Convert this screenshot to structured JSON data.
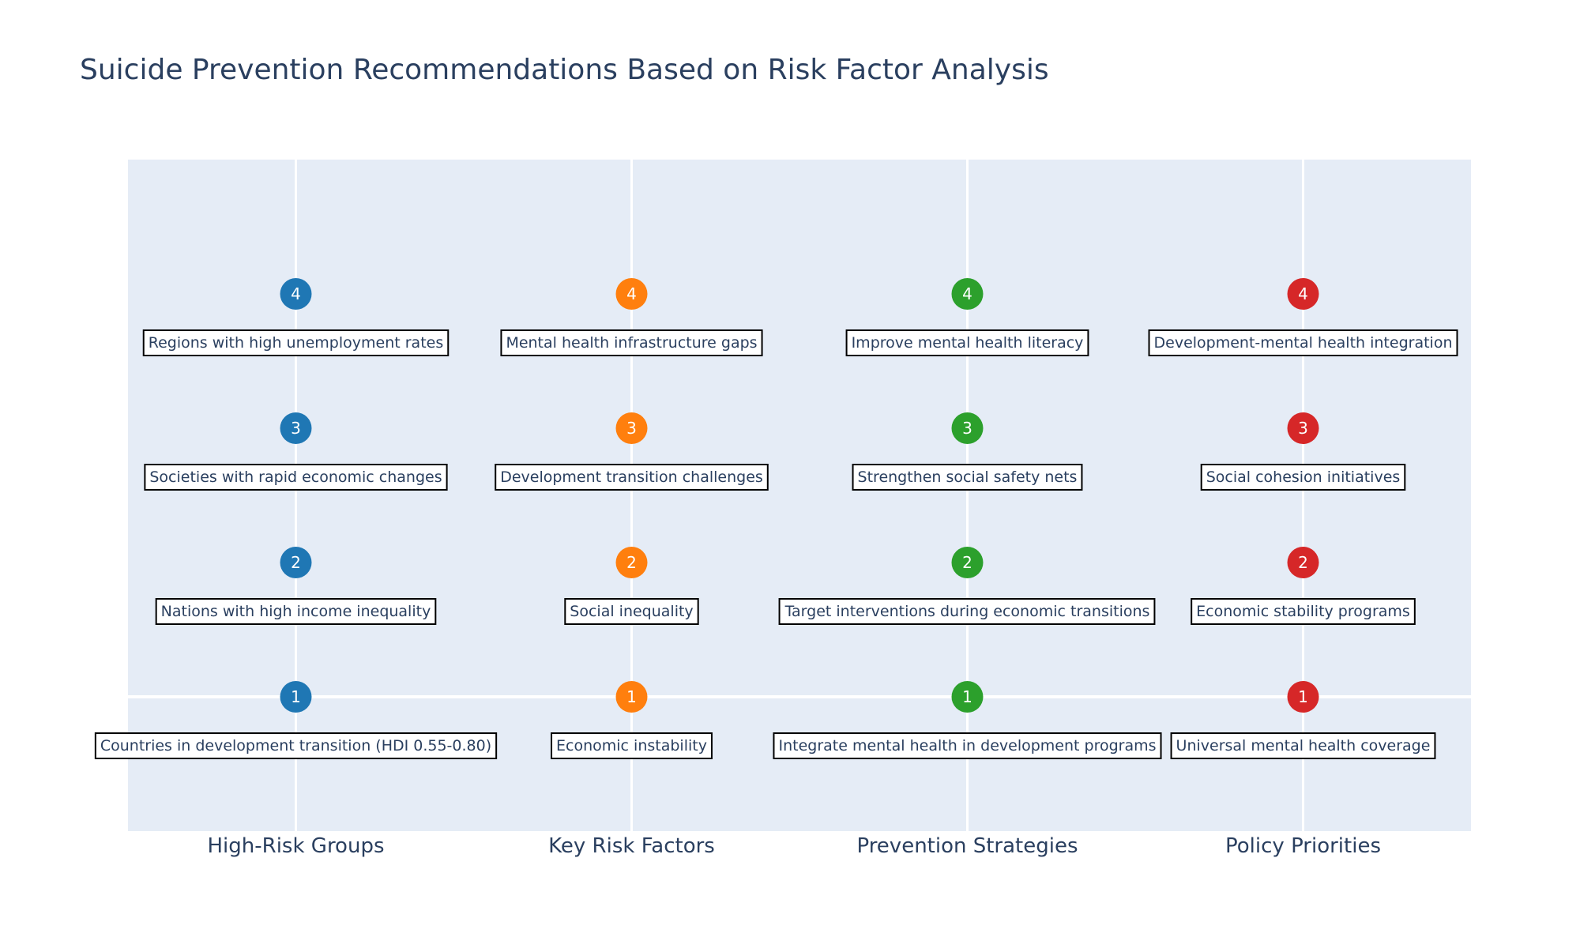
{
  "chart_data": {
    "type": "scatter",
    "title": "Suicide Prevention Recommendations Based on Risk Factor Analysis",
    "xlabel": "",
    "ylabel": "",
    "categories": [
      "High-Risk Groups",
      "Key Risk Factors",
      "Prevention Strategies",
      "Policy Priorities"
    ],
    "ylim": [
      0,
      5
    ],
    "grid": true,
    "legend": "none",
    "plot_background": "#e5ecf6",
    "grid_color": "#ffffff",
    "series": [
      {
        "color": "#1f77b4",
        "ranks": [
          1,
          2,
          3,
          4
        ],
        "labels": [
          "Countries in development transition (HDI 0.55-0.80)",
          "Nations with high income inequality",
          "Societies with rapid economic changes",
          "Regions with high unemployment rates"
        ]
      },
      {
        "color": "#ff7f0e",
        "ranks": [
          1,
          2,
          3,
          4
        ],
        "labels": [
          "Economic instability",
          "Social inequality",
          "Development transition challenges",
          "Mental health infrastructure gaps"
        ]
      },
      {
        "color": "#2ca02c",
        "ranks": [
          1,
          2,
          3,
          4
        ],
        "labels": [
          "Integrate mental health in development programs",
          "Target interventions during economic transitions",
          "Strengthen social safety nets",
          "Improve mental health literacy"
        ]
      },
      {
        "color": "#d62728",
        "ranks": [
          1,
          2,
          3,
          4
        ],
        "labels": [
          "Universal mental health coverage",
          "Economic stability programs",
          "Social cohesion initiatives",
          "Development-mental health integration"
        ]
      }
    ]
  }
}
